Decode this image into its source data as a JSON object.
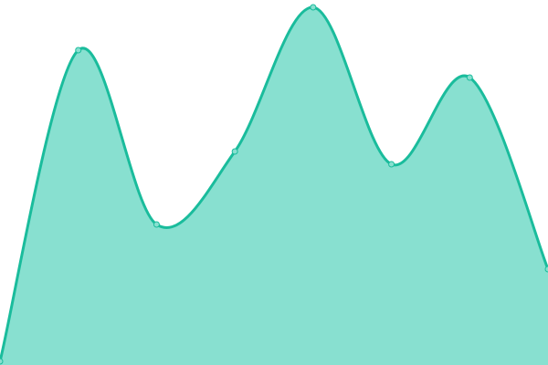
{
  "chart_data": {
    "type": "area",
    "x": [
      0,
      1,
      2,
      3,
      4,
      5,
      6,
      7
    ],
    "values": [
      4,
      345,
      154,
      234,
      392,
      220,
      315,
      105
    ],
    "ylim": [
      0,
      400
    ],
    "grid": false,
    "axes": false,
    "legend": "none",
    "colors": {
      "line": "#1abc9c",
      "fill": "#88e0d0",
      "point_fill": "#88e0d0"
    }
  }
}
